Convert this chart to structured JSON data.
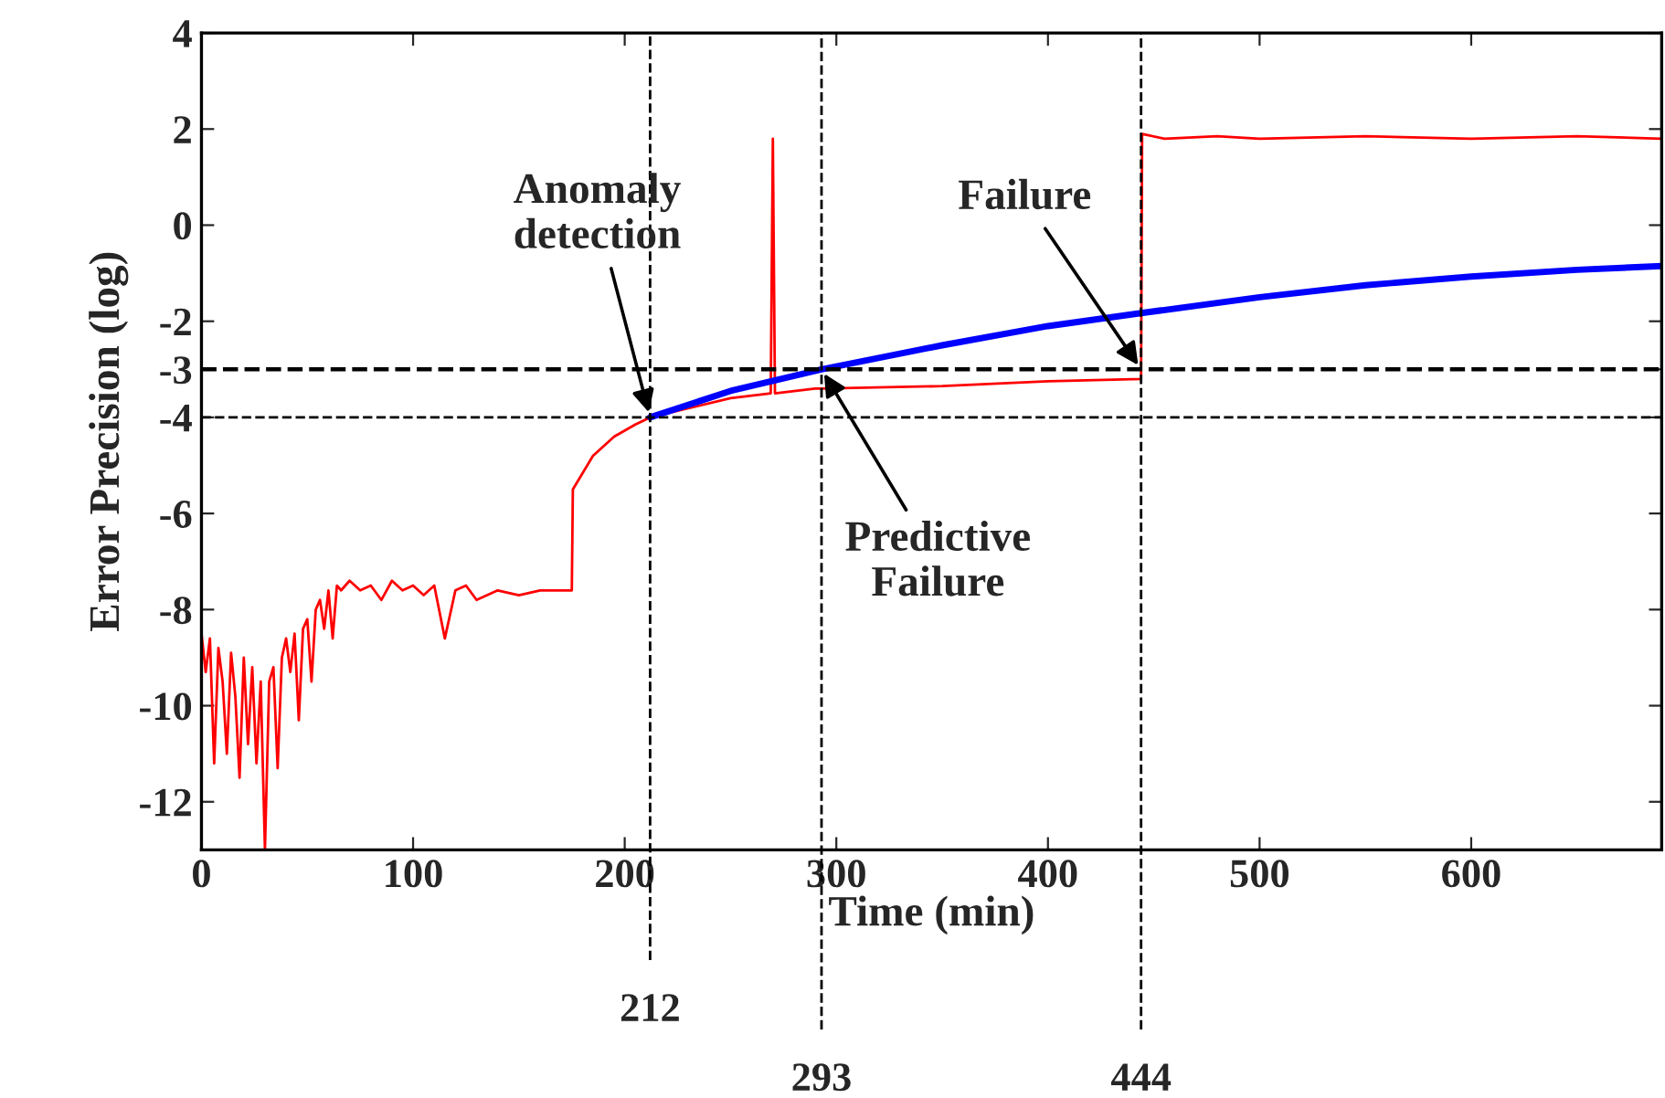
{
  "chart_data": {
    "type": "line",
    "xlabel": "Time (min)",
    "ylabel": "Error Precision (log)",
    "xlim": [
      0,
      690
    ],
    "ylim": [
      -13,
      4
    ],
    "xticks": [
      0,
      100,
      200,
      300,
      400,
      500,
      600
    ],
    "yticks": [
      -12,
      -10,
      -8,
      -6,
      {
        "value": -4,
        "label": "-4"
      },
      {
        "value": -3,
        "label": "-3"
      },
      -2,
      0,
      2,
      4
    ],
    "grid": false,
    "legend": false,
    "marker": "none",
    "line_style": "solid",
    "series": [
      {
        "color": "#ff0000",
        "x": [
          0,
          2,
          4,
          6,
          8,
          10,
          12,
          14,
          16,
          18,
          20,
          22,
          24,
          26,
          28,
          30,
          32,
          34,
          36,
          38,
          40,
          42,
          44,
          46,
          48,
          50,
          52,
          54,
          56,
          58,
          60,
          62,
          64,
          66,
          70,
          75,
          80,
          85,
          90,
          95,
          100,
          105,
          110,
          115,
          120,
          125,
          130,
          140,
          150,
          160,
          170,
          175,
          175.5,
          185,
          195,
          205,
          212,
          230,
          250,
          269,
          270,
          271,
          290,
          293,
          350,
          400,
          444,
          444.5,
          455,
          480,
          500,
          550,
          600,
          650,
          690
        ],
        "values": [
          -8.5,
          -9.3,
          -8.6,
          -11.2,
          -8.8,
          -9.5,
          -11.0,
          -8.9,
          -9.8,
          -11.5,
          -9.0,
          -10.8,
          -9.2,
          -11.2,
          -9.5,
          -13,
          -9.5,
          -9.2,
          -11.3,
          -9.0,
          -8.6,
          -9.3,
          -8.5,
          -10.3,
          -8.4,
          -8.2,
          -9.5,
          -8.0,
          -7.8,
          -8.4,
          -7.6,
          -8.6,
          -7.5,
          -7.6,
          -7.4,
          -7.6,
          -7.5,
          -7.8,
          -7.4,
          -7.6,
          -7.5,
          -7.7,
          -7.5,
          -8.6,
          -7.6,
          -7.5,
          -7.8,
          -7.6,
          -7.7,
          -7.6,
          -7.6,
          -7.6,
          -5.5,
          -4.8,
          -4.4,
          -4.15,
          -4.0,
          null,
          -3.6,
          -3.5,
          1.8,
          -3.5,
          -3.4,
          -3.4,
          -3.35,
          -3.25,
          -3.2,
          1.9,
          1.8,
          1.85,
          1.8,
          1.85,
          1.8,
          1.85,
          1.8
        ]
      },
      {
        "color": "#0000ff",
        "x": [
          212,
          250,
          293,
          350,
          400,
          444,
          500,
          550,
          600,
          650,
          690
        ],
        "values": [
          -4,
          -3.45,
          -3.0,
          -2.5,
          -2.1,
          -1.83,
          -1.5,
          -1.25,
          -1.07,
          -0.93,
          -0.85
        ]
      }
    ],
    "ref_lines": [
      {
        "axis": "y",
        "value": -3,
        "color": "#000000",
        "line_style": "dashed"
      },
      {
        "axis": "y",
        "value": -4,
        "color": "#000000",
        "line_style": "dashed"
      },
      {
        "axis": "x",
        "value": 212,
        "label": "212",
        "color": "#000000",
        "line_style": "dashed"
      },
      {
        "axis": "x",
        "value": 293,
        "label": "293",
        "color": "#000000",
        "line_style": "dashed"
      },
      {
        "axis": "x",
        "value": 444,
        "label": "444",
        "color": "#000000",
        "line_style": "dashed"
      }
    ],
    "annotations": [
      {
        "text": "Anomaly\ndetection",
        "x": 212,
        "y": -4
      },
      {
        "text": "Predictive\nFailure",
        "x": 293,
        "y": -3
      },
      {
        "text": "Failure",
        "x": 444,
        "y": -3
      }
    ]
  }
}
